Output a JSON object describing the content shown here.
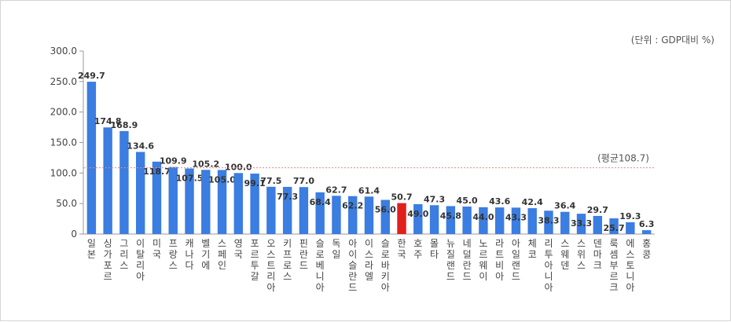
{
  "unit_note": "(단위 : GDP대비 %)",
  "avg_label": "(평균108.7)",
  "colors": {
    "bar": "#3b7de0",
    "highlight": "#e0201c",
    "avg_line": "#e38a8a",
    "axis": "#999999",
    "text": "#333333"
  },
  "chart_data": {
    "type": "bar",
    "title": "",
    "xlabel": "",
    "ylabel": "",
    "ylim": [
      0,
      300
    ],
    "yticks": [
      "0",
      "50.0",
      "100.0",
      "150.0",
      "200.0",
      "250.0",
      "300.0"
    ],
    "ytick_values": [
      0,
      50,
      100,
      150,
      200,
      250,
      300
    ],
    "average": 108.7,
    "highlight": "한국",
    "categories": [
      "일본",
      "싱가포르",
      "그리스",
      "이탈리아",
      "미국",
      "프랑스",
      "캐나다",
      "벨기에",
      "스페인",
      "영국",
      "포르투갈",
      "오스트리아",
      "키프로스",
      "핀란드",
      "슬로베니아",
      "독일",
      "아이슬란드",
      "이스라엘",
      "슬로바키아",
      "한국",
      "호주",
      "몰타",
      "뉴질랜드",
      "네덜란드",
      "노르웨이",
      "라트비아",
      "아일랜드",
      "체코",
      "리투아니아",
      "스웨덴",
      "스위스",
      "덴마크",
      "룩셈부르크",
      "에스토니아",
      "홍콩"
    ],
    "values": [
      249.7,
      174.8,
      168.9,
      134.6,
      118.7,
      109.9,
      107.5,
      105.2,
      105.0,
      100.0,
      99.1,
      77.5,
      77.3,
      77.0,
      68.4,
      62.7,
      62.2,
      61.4,
      56.0,
      50.7,
      49.0,
      47.3,
      45.8,
      45.0,
      44.0,
      43.6,
      43.3,
      42.4,
      38.3,
      36.4,
      33.3,
      29.7,
      25.7,
      19.3,
      6.3
    ],
    "value_labels": [
      "249.7",
      "174.8",
      "168.9",
      "134.6",
      "118.7",
      "109.9",
      "107.5",
      "105.2",
      "105.0",
      "100.0",
      "99.1",
      "77.5",
      "77.3",
      "77.0",
      "68.4",
      "62.7",
      "62.2",
      "61.4",
      "56.0",
      "50.7",
      "49.0",
      "47.3",
      "45.8",
      "45.0",
      "44.0",
      "43.6",
      "43.3",
      "42.4",
      "38.3",
      "36.4",
      "33.3",
      "29.7",
      "25.7",
      "19.3",
      "6.3"
    ],
    "label_inside": [
      false,
      false,
      false,
      false,
      true,
      false,
      true,
      false,
      true,
      false,
      true,
      false,
      true,
      false,
      true,
      false,
      true,
      false,
      true,
      false,
      true,
      false,
      true,
      false,
      true,
      false,
      true,
      false,
      true,
      false,
      true,
      false,
      true,
      false,
      false
    ]
  }
}
